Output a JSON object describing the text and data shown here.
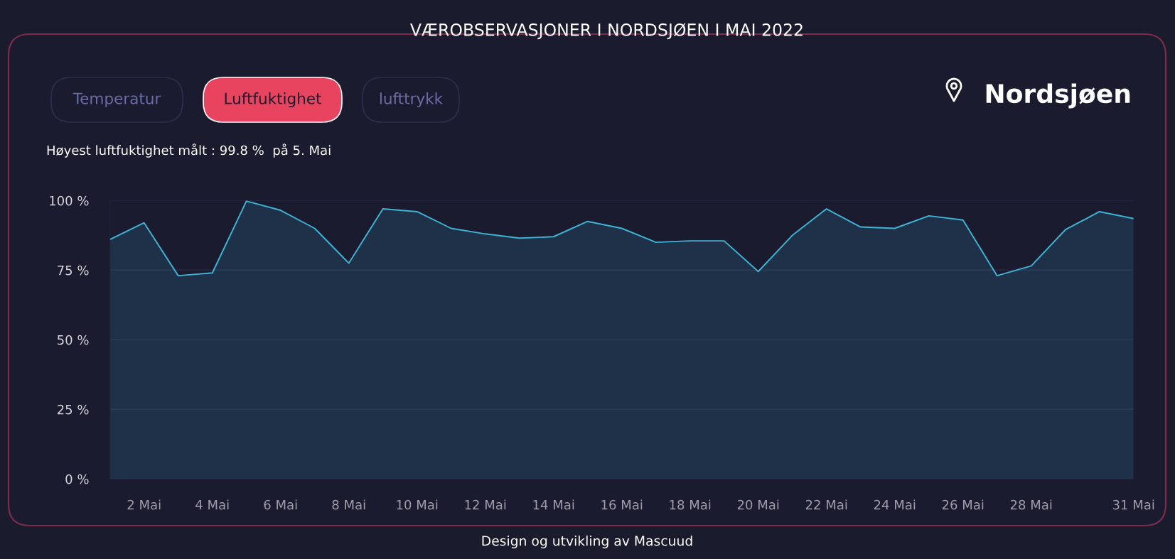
{
  "chart_data": {
    "type": "area",
    "title": "VÆROBSERVASJONER I NORDSJØEN I MAI 2022",
    "categories": [
      null,
      "2 Mai",
      null,
      "4 Mai",
      null,
      "6 Mai",
      null,
      "8 Mai",
      null,
      "10 Mai",
      null,
      "12 Mai",
      null,
      "14 Mai",
      null,
      "16 Mai",
      null,
      "18 Mai",
      null,
      "20 Mai",
      null,
      "22 Mai",
      null,
      "24 Mai",
      null,
      "26 Mai",
      null,
      "28 Mai",
      null,
      null,
      "31 Mai"
    ],
    "series": [
      {
        "color": "#3eb4d4",
        "values": [
          86,
          92,
          73,
          74,
          99.8,
          96.5,
          90,
          77.5,
          97,
          96,
          90,
          88,
          86.5,
          87,
          92.5,
          90,
          85,
          85.5,
          85.5,
          74.5,
          87.5,
          97,
          90.5,
          90,
          94.5,
          93,
          73,
          76.5,
          89.5,
          96,
          93.5
        ]
      }
    ],
    "ylim": [
      0,
      100
    ],
    "yticks": [
      {
        "value": 0,
        "label": "0 %"
      },
      {
        "value": 25,
        "label": "25 %"
      },
      {
        "value": 50,
        "label": "50 %"
      },
      {
        "value": 75,
        "label": "75 %"
      },
      {
        "value": 100,
        "label": "100 %"
      }
    ],
    "grid": "y",
    "annotations": [
      "Temperatur",
      "Luftfuktighet",
      "lufttrykk",
      "Nordsjøen",
      "Høyest luftfuktighet målt : 99.8 %  på 5. Mai",
      "Design og utvikling av Mascuud"
    ]
  }
}
